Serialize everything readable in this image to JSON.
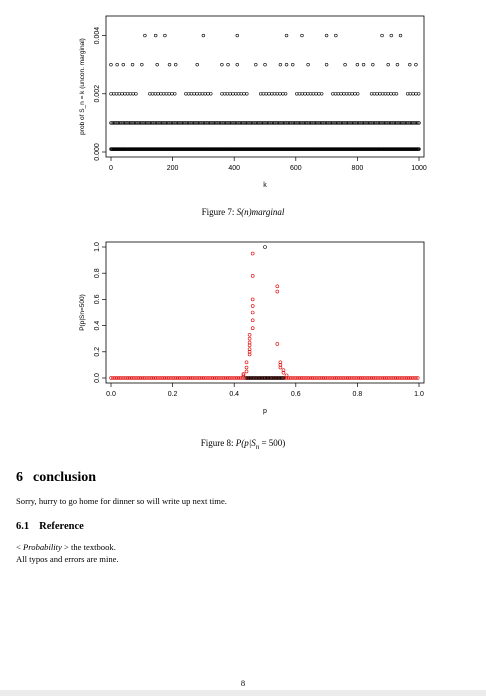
{
  "figures": [
    {
      "caption_label": "Figure 7:",
      "caption_text": "S(n)marginal",
      "chart_data": {
        "type": "scatter",
        "xlabel": "k",
        "ylabel": "prob of S_n = k (uncon. marginal)",
        "xlim": [
          0,
          1000
        ],
        "ylim": [
          0,
          0.0045
        ],
        "xticks": [
          "0",
          "200",
          "400",
          "600",
          "800",
          "1000"
        ],
        "yticks": [
          "0.000",
          "0.002",
          "0.004"
        ],
        "marker": "open-circle",
        "color": "#000000",
        "series": [
          {
            "y": 0.0001,
            "xs": [
              0,
              1000
            ],
            "density": "continuous"
          },
          {
            "y": 0.001,
            "xs": [
              0,
              1000
            ],
            "density": "dense"
          },
          {
            "y": 0.002,
            "xs": [
              0,
              1000
            ],
            "density": "medium"
          },
          {
            "y": 0.003,
            "x": [
              0,
              20,
              40,
              70,
              100,
              150,
              190,
              210,
              280,
              360,
              380,
              410,
              470,
              500,
              550,
              570,
              590,
              640,
              700,
              760,
              800,
              820,
              850,
              900,
              930,
              970,
              990
            ]
          },
          {
            "y": 0.004,
            "x": [
              110,
              145,
              175,
              300,
              410,
              570,
              620,
              700,
              730,
              880,
              910,
              940
            ]
          },
          {
            "y": 0.005,
            "x": [
              350,
              410,
              570,
              770,
              910
            ]
          }
        ]
      }
    },
    {
      "caption_label": "Figure 8:",
      "caption_text": "P(p|S",
      "caption_sub": "n",
      "caption_tail": " = 500)",
      "chart_data": {
        "type": "scatter",
        "xlabel": "p",
        "ylabel": "P(p|Sn=500)",
        "xlim": [
          0,
          1
        ],
        "ylim": [
          0,
          1
        ],
        "xticks": [
          "0.0",
          "0.2",
          "0.4",
          "0.6",
          "0.8",
          "1.0"
        ],
        "yticks": [
          "0.0",
          "0.2",
          "0.4",
          "0.6",
          "0.8",
          "1.0"
        ],
        "marker": "open-circle",
        "series": [
          {
            "color": "#000000",
            "points": [
              [
                0.5,
                1.0
              ]
            ],
            "baseline_x": [
              0.44,
              0.56
            ]
          },
          {
            "color": "#e00000",
            "points": [
              [
                0.46,
                0.95
              ],
              [
                0.46,
                0.78
              ],
              [
                0.46,
                0.6
              ],
              [
                0.46,
                0.55
              ],
              [
                0.46,
                0.5
              ],
              [
                0.46,
                0.44
              ],
              [
                0.46,
                0.38
              ],
              [
                0.45,
                0.33
              ],
              [
                0.45,
                0.3
              ],
              [
                0.45,
                0.27
              ],
              [
                0.45,
                0.25
              ],
              [
                0.45,
                0.22
              ],
              [
                0.45,
                0.2
              ],
              [
                0.45,
                0.18
              ],
              [
                0.44,
                0.12
              ],
              [
                0.44,
                0.08
              ],
              [
                0.44,
                0.05
              ],
              [
                0.43,
                0.03
              ],
              [
                0.43,
                0.02
              ],
              [
                0.54,
                0.7
              ],
              [
                0.54,
                0.66
              ],
              [
                0.54,
                0.26
              ],
              [
                0.55,
                0.12
              ],
              [
                0.55,
                0.1
              ],
              [
                0.55,
                0.08
              ],
              [
                0.56,
                0.06
              ],
              [
                0.56,
                0.04
              ],
              [
                0.57,
                0.02
              ]
            ],
            "baseline_x": [
              0,
              1
            ]
          }
        ]
      }
    }
  ],
  "section": {
    "number": "6",
    "title": "conclusion"
  },
  "conclusion_text": "Sorry, hurry to go home for dinner so will write up next time.",
  "subsection": {
    "number": "6.1",
    "title": "Reference"
  },
  "reference_book": "Probability",
  "reference_tail": " the textbook.",
  "typos_text": "All typos and errors are mine.",
  "page_number": "8"
}
